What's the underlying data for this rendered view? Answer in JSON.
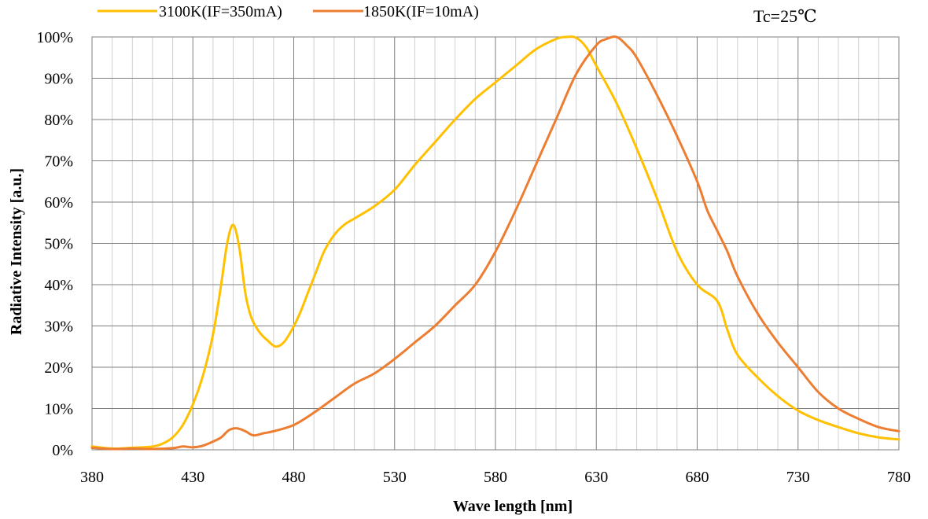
{
  "chart_data": {
    "type": "line",
    "title": "",
    "annotation": "Tc=25℃",
    "xlabel": "Wave length [nm]",
    "ylabel": "Radiative Intensity [a.u.]",
    "xlim": [
      380,
      780
    ],
    "ylim": [
      0,
      100
    ],
    "x_ticks": [
      380,
      430,
      480,
      530,
      580,
      630,
      680,
      730,
      780
    ],
    "y_ticks": [
      0,
      10,
      20,
      30,
      40,
      50,
      60,
      70,
      80,
      90,
      100
    ],
    "y_tick_labels": [
      "0%",
      "10%",
      "20%",
      "30%",
      "40%",
      "50%",
      "60%",
      "70%",
      "80%",
      "90%",
      "100%"
    ],
    "x_tick_labels": [
      "380",
      "430",
      "480",
      "530",
      "580",
      "630",
      "680",
      "730",
      "780"
    ],
    "grid": "major and minor",
    "legend_position": "top-left",
    "series": [
      {
        "name": "3100K(IF=350mA)",
        "color": "#FFC000",
        "x": [
          380,
          390,
          400,
          410,
          415,
          420,
          425,
          430,
          435,
          440,
          444,
          447,
          450,
          453,
          456,
          459,
          463,
          467,
          471,
          475,
          479,
          483,
          487,
          491,
          495,
          500,
          505,
          510,
          520,
          530,
          540,
          550,
          560,
          570,
          580,
          590,
          600,
          610,
          615,
          620,
          625,
          630,
          640,
          650,
          660,
          670,
          680,
          690,
          695,
          700,
          710,
          720,
          730,
          740,
          750,
          760,
          770,
          780
        ],
        "y": [
          0.8,
          0.3,
          0.5,
          0.8,
          1.5,
          3,
          6,
          11,
          18,
          28,
          40,
          50,
          54.5,
          49,
          38,
          32,
          28.5,
          26.5,
          25,
          26,
          29,
          33,
          38,
          43,
          48,
          52,
          54.5,
          56,
          59,
          63,
          69,
          74.5,
          80,
          85,
          89,
          93,
          97,
          99.5,
          100,
          99.8,
          97.5,
          93,
          84,
          73,
          61,
          48,
          40,
          36,
          29,
          23,
          17.5,
          13,
          9.5,
          7.2,
          5.5,
          4,
          3,
          2.5
        ]
      },
      {
        "name": "1850K(IF=10mA)",
        "color": "#ED7D31",
        "x": [
          380,
          390,
          400,
          410,
          420,
          425,
          430,
          435,
          440,
          444,
          448,
          452,
          456,
          460,
          465,
          470,
          480,
          490,
          500,
          510,
          520,
          530,
          540,
          550,
          560,
          570,
          580,
          590,
          600,
          610,
          620,
          630,
          635,
          640,
          645,
          650,
          660,
          670,
          680,
          685,
          690,
          695,
          700,
          710,
          720,
          730,
          740,
          750,
          760,
          770,
          780
        ],
        "y": [
          0.5,
          0.2,
          0.3,
          0.2,
          0.4,
          0.8,
          0.6,
          1,
          2,
          3,
          4.8,
          5.2,
          4.5,
          3.5,
          4,
          4.5,
          6,
          9,
          12.5,
          16,
          18.5,
          22,
          26,
          30,
          35,
          40,
          48,
          58,
          69,
          80,
          91,
          98,
          99.5,
          100,
          98,
          95,
          86,
          76,
          65,
          58,
          53,
          48,
          42,
          33,
          26,
          20,
          14,
          10,
          7.5,
          5.5,
          4.5
        ]
      }
    ]
  }
}
